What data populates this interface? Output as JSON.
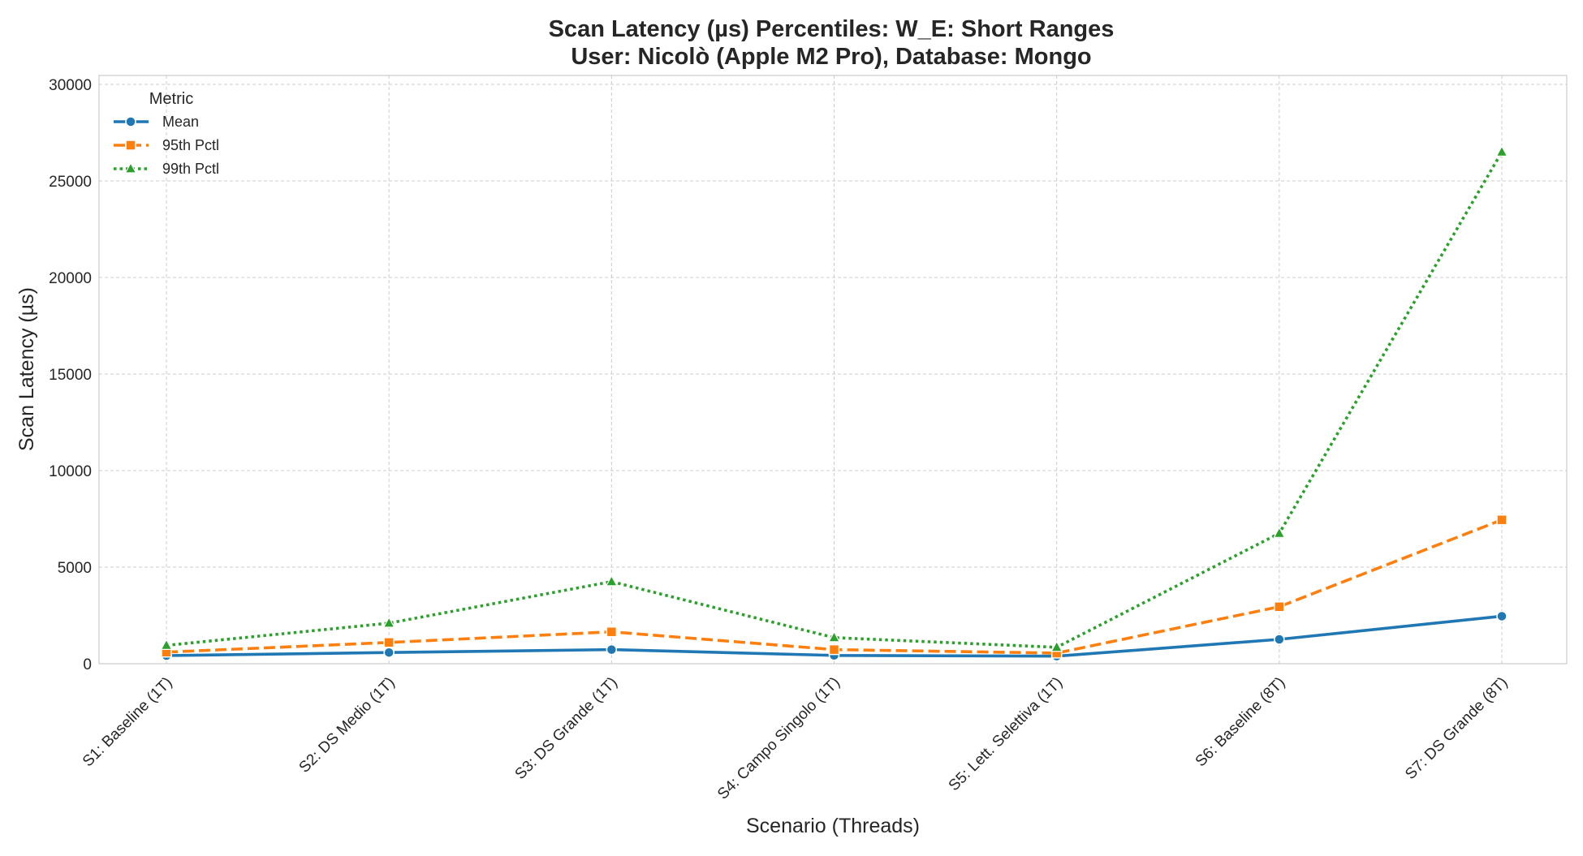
{
  "chart_data": {
    "type": "line",
    "title": "Scan Latency (µs) Percentiles: W_E: Short Ranges",
    "subtitle": "User: Nicolò (Apple M2 Pro), Database: Mongo",
    "xlabel": "Scenario (Threads)",
    "ylabel": "Scan Latency (µs)",
    "ylim": [
      0,
      30000
    ],
    "yticks": [
      0,
      5000,
      10000,
      15000,
      20000,
      25000,
      30000
    ],
    "grid": true,
    "legend_title": "Metric",
    "legend_position": "top-left",
    "categories": [
      "S1: Baseline (1T)",
      "S2: DS Medio (1T)",
      "S3: DS Grande (1T)",
      "S4: Campo Singolo (1T)",
      "S5: Lett. Selettiva (1T)",
      "S6: Baseline (8T)",
      "S7: DS Grande (8T)"
    ],
    "series": [
      {
        "name": "Mean",
        "values": [
          420,
          580,
          730,
          430,
          390,
          1260,
          2460
        ],
        "color": "#1f77b4",
        "marker": "circle",
        "dash": "solid"
      },
      {
        "name": "95th Pctl",
        "values": [
          600,
          1100,
          1650,
          730,
          550,
          2950,
          7450
        ],
        "color": "#ff7f0e",
        "marker": "square",
        "dash": "dashed"
      },
      {
        "name": "99th Pctl",
        "values": [
          950,
          2100,
          4250,
          1350,
          850,
          6750,
          26500
        ],
        "color": "#2ca02c",
        "marker": "triangle",
        "dash": "dotted"
      }
    ]
  }
}
